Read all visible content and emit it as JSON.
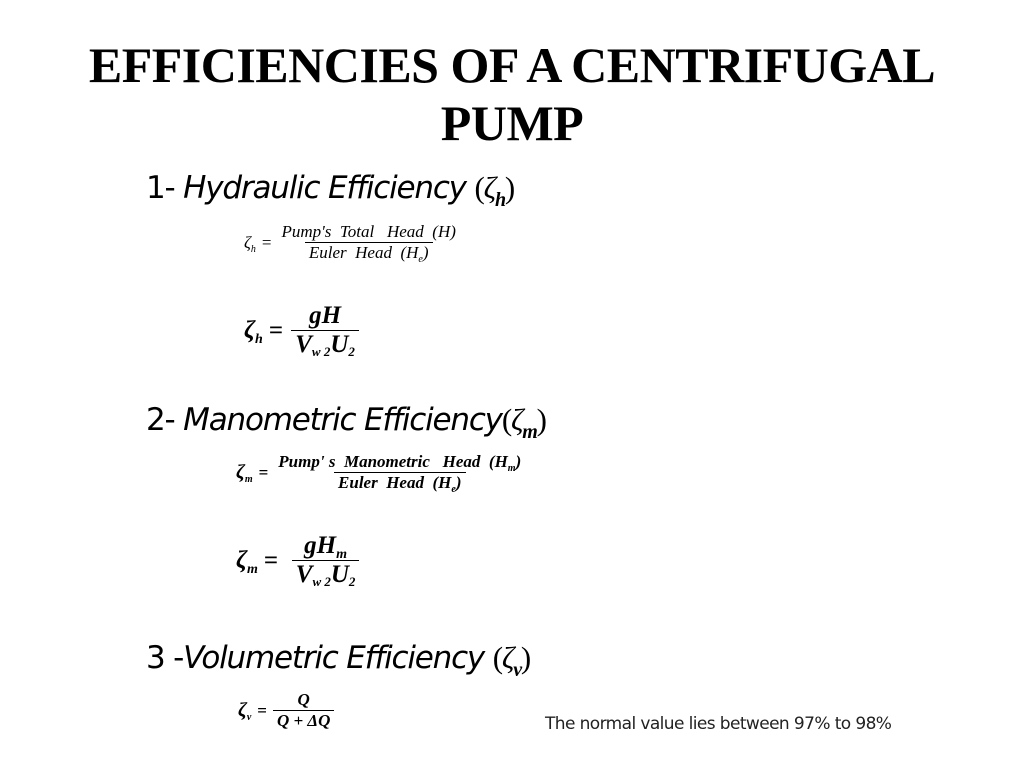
{
  "title_line1": "EFFICIENCIES OF A CENTRIFUGAL",
  "title_line2": "PUMP",
  "section1": {
    "number": "1- ",
    "label": "Hydraulic Efficiency ",
    "symbol": "ζ",
    "sub": "h",
    "eq1": {
      "lhs": "ζ",
      "lhs_sub": "h",
      "numerator": "Pump's  Total   Head  (H)",
      "denominator_a": "Euler  Head  (H",
      "denominator_sub": "e",
      "denominator_b": ")"
    },
    "eq2": {
      "lhs": "ζ",
      "lhs_sub": "h",
      "numerator": "gH",
      "den_v": "V",
      "den_v_sub": "w 2",
      "den_u": "U",
      "den_u_sub": "2"
    }
  },
  "section2": {
    "number": "2- ",
    "label": "Manometric Efficiency",
    "symbol": "ζ",
    "sub": "m",
    "eq1": {
      "lhs": "ζ",
      "lhs_sub": "m",
      "numerator_a": "Pump' s  Manometric   Head  (H",
      "numerator_sub": "m",
      "numerator_b": ")",
      "denominator_a": "Euler  Head  (H",
      "denominator_sub": "e",
      "denominator_b": ")"
    },
    "eq2": {
      "lhs": "ζ",
      "lhs_sub": "m",
      "numerator": "gH",
      "numerator_sub": "m",
      "den_v": "V",
      "den_v_sub": "w 2",
      "den_u": "U",
      "den_u_sub": "2"
    }
  },
  "section3": {
    "number": "3 -",
    "label": "Volumetric Efficiency ",
    "symbol": "ζ",
    "sub": "v",
    "eq1": {
      "lhs": "ζ",
      "lhs_sub": "v",
      "numerator": "Q",
      "denominator": "Q + ΔQ"
    }
  },
  "note": "The normal value lies between 97% to 98%"
}
